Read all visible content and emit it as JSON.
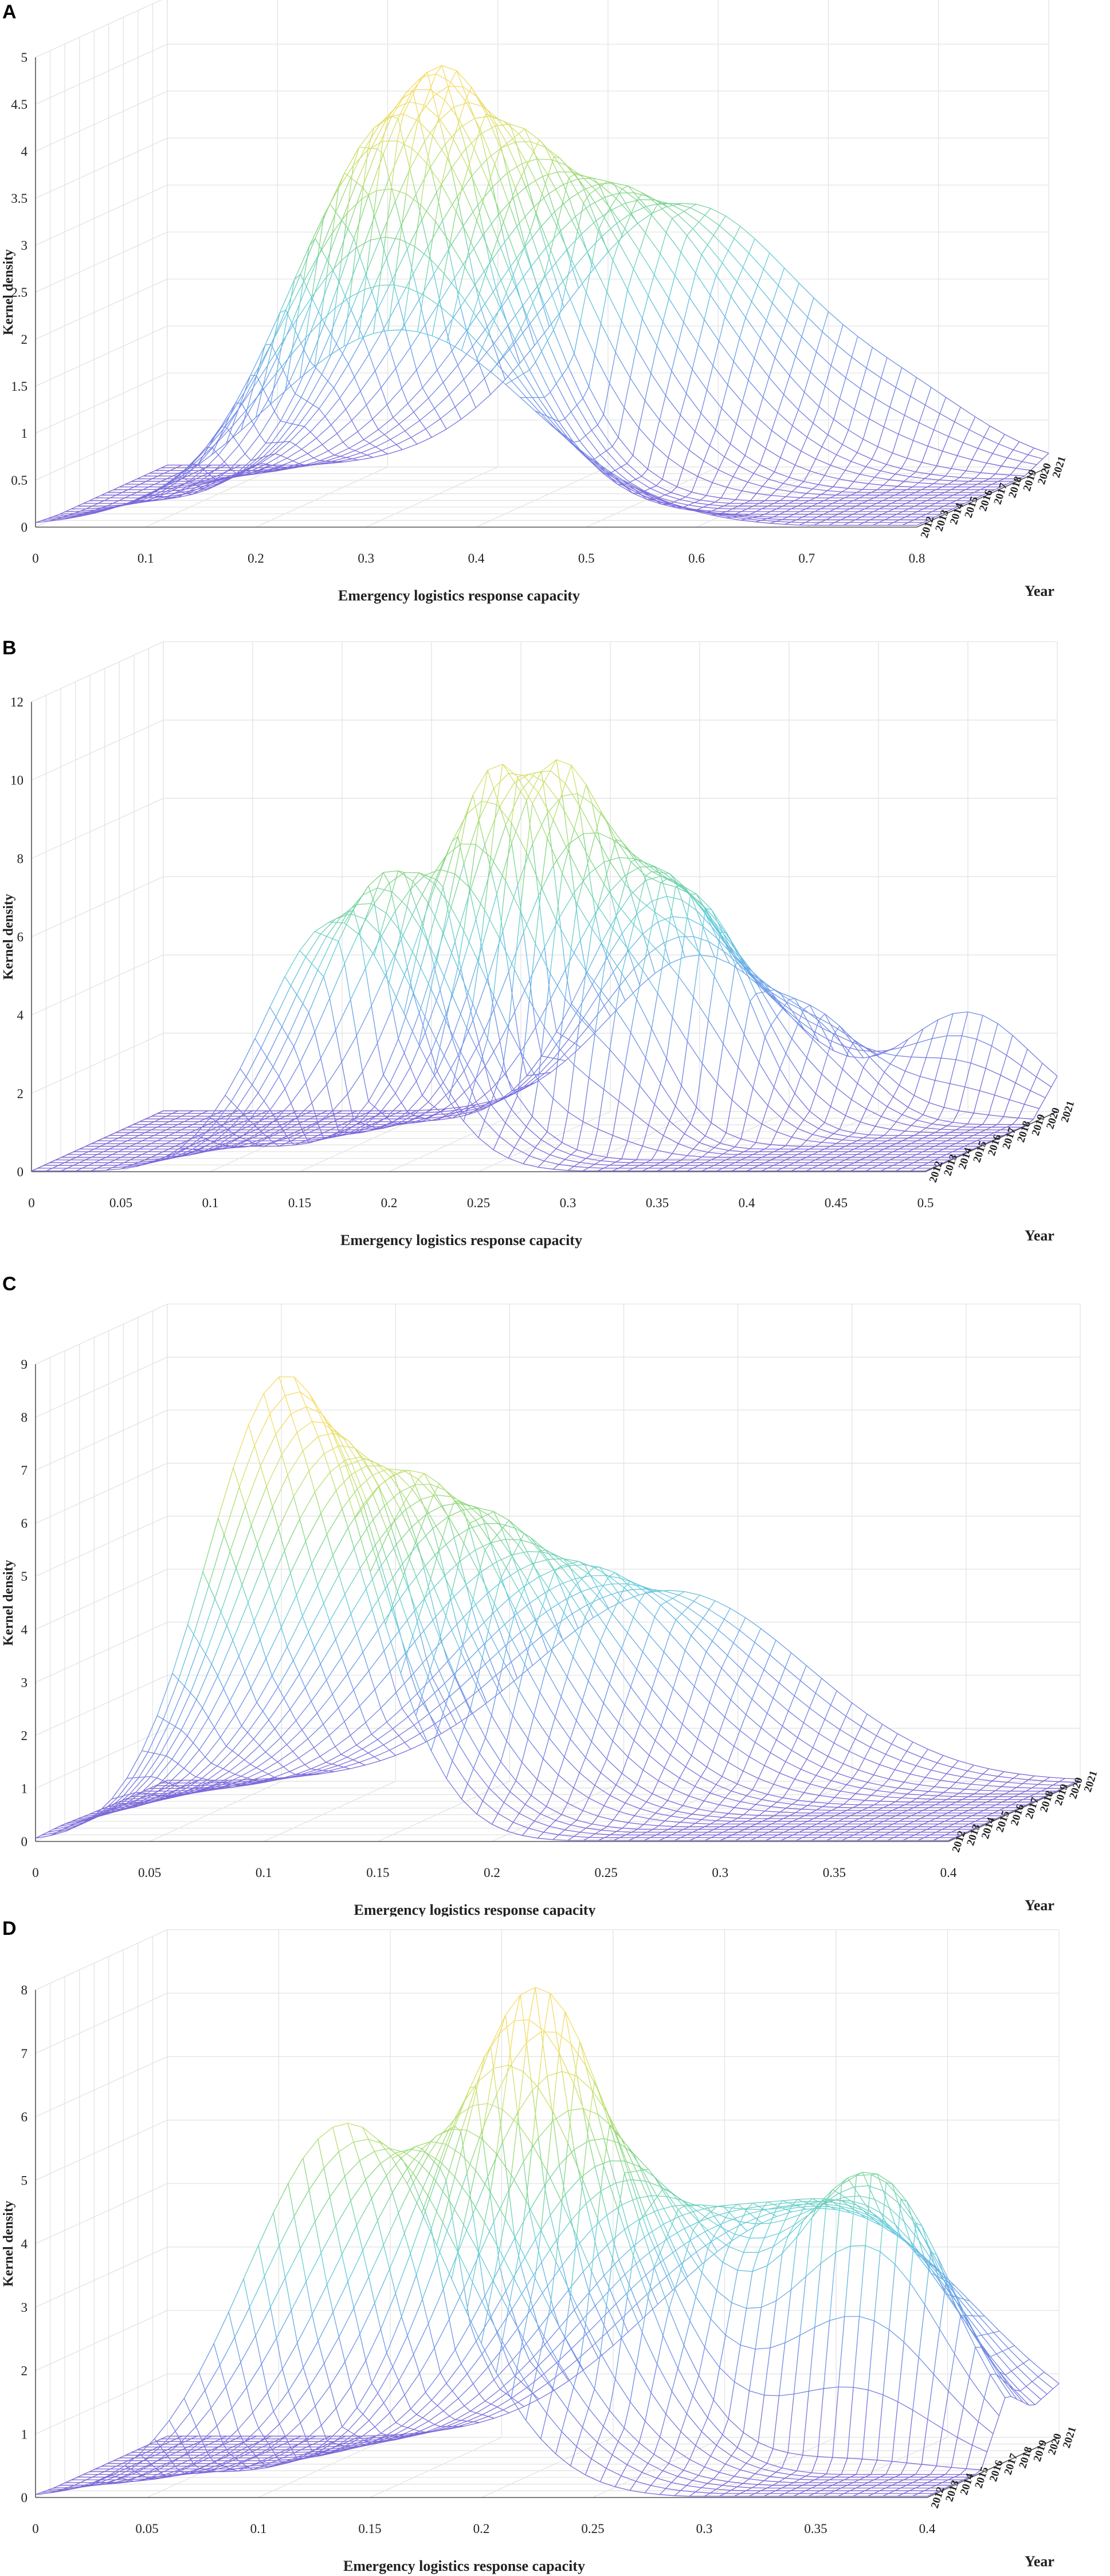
{
  "chart_data": [
    {
      "panel": "A",
      "type": "surface3d",
      "xlabel": "Emergency logistics response capacity",
      "ylabel": "Kernel density",
      "zlabel": "Year",
      "xticks": [
        "0",
        "0.1",
        "0.2",
        "0.3",
        "0.4",
        "0.5",
        "0.6",
        "0.7",
        "0.8"
      ],
      "yticks": [
        "0",
        "0.5",
        "1",
        "1.5",
        "2",
        "2.5",
        "3",
        "3.5",
        "4",
        "4.5",
        "5"
      ],
      "years": [
        "2012",
        "2013",
        "2014",
        "2015",
        "2016",
        "2017",
        "2018",
        "2019",
        "2020",
        "2021"
      ],
      "xlim": [
        0,
        0.8
      ],
      "ylim": [
        0,
        5
      ],
      "peaks": [
        {
          "year": "2012",
          "comps": [
            [
              0.33,
              0.12,
              2.1
            ]
          ]
        },
        {
          "year": "2014",
          "comps": [
            [
              0.3,
              0.09,
              4.2
            ]
          ]
        },
        {
          "year": "2016",
          "comps": [
            [
              0.32,
              0.08,
              4.7
            ]
          ]
        },
        {
          "year": "2018",
          "comps": [
            [
              0.36,
              0.1,
              3.9
            ]
          ]
        },
        {
          "year": "2020",
          "comps": [
            [
              0.42,
              0.11,
              3.2
            ]
          ]
        },
        {
          "year": "2021",
          "comps": [
            [
              0.47,
              0.11,
              2.8
            ],
            [
              0.68,
              0.07,
              0.5
            ]
          ]
        }
      ]
    },
    {
      "panel": "B",
      "type": "surface3d",
      "xlabel": "Emergency logistics response capacity",
      "ylabel": "Kernel density",
      "zlabel": "Year",
      "xticks": [
        "0",
        "0.05",
        "0.1",
        "0.15",
        "0.2",
        "0.25",
        "0.3",
        "0.35",
        "0.4",
        "0.45",
        "0.5"
      ],
      "yticks": [
        "0",
        "2",
        "4",
        "6",
        "8",
        "10",
        "12"
      ],
      "years": [
        "2012",
        "2013",
        "2014",
        "2015",
        "2016",
        "2017",
        "2018",
        "2019",
        "2020",
        "2021"
      ],
      "xlim": [
        0,
        0.5
      ],
      "ylim": [
        0,
        12
      ],
      "peaks": [
        {
          "year": "2012",
          "comps": [
            [
              0.17,
              0.04,
              6.4
            ]
          ]
        },
        {
          "year": "2014",
          "comps": [
            [
              0.19,
              0.04,
              7.6
            ]
          ]
        },
        {
          "year": "2016",
          "comps": [
            [
              0.23,
              0.035,
              9.8
            ],
            [
              0.3,
              0.025,
              3.0
            ]
          ]
        },
        {
          "year": "2018",
          "comps": [
            [
              0.25,
              0.035,
              9.5
            ],
            [
              0.33,
              0.03,
              5.5
            ]
          ]
        },
        {
          "year": "2020",
          "comps": [
            [
              0.29,
              0.04,
              6.5
            ],
            [
              0.38,
              0.03,
              2.5
            ]
          ]
        },
        {
          "year": "2021",
          "comps": [
            [
              0.3,
              0.05,
              4.0
            ],
            [
              0.45,
              0.035,
              2.5
            ]
          ]
        }
      ]
    },
    {
      "panel": "C",
      "type": "surface3d",
      "xlabel": "Emergency logistics response capacity",
      "ylabel": "Kernel density",
      "zlabel": "Year",
      "xticks": [
        "0",
        "0.05",
        "0.1",
        "0.15",
        "0.2",
        "0.25",
        "0.3",
        "0.35",
        "0.4"
      ],
      "yticks": [
        "0",
        "1",
        "2",
        "3",
        "4",
        "5",
        "6",
        "7",
        "8",
        "9"
      ],
      "years": [
        "2012",
        "2013",
        "2014",
        "2015",
        "2016",
        "2017",
        "2018",
        "2019",
        "2020",
        "2021"
      ],
      "xlim": [
        0,
        0.4
      ],
      "ylim": [
        0,
        9
      ],
      "peaks": [
        {
          "year": "2012",
          "comps": [
            [
              0.11,
              0.035,
              8.8
            ]
          ]
        },
        {
          "year": "2014",
          "comps": [
            [
              0.12,
              0.04,
              7.4
            ]
          ]
        },
        {
          "year": "2016",
          "comps": [
            [
              0.14,
              0.045,
              6.6
            ]
          ]
        },
        {
          "year": "2018",
          "comps": [
            [
              0.16,
              0.05,
              5.6
            ]
          ]
        },
        {
          "year": "2020",
          "comps": [
            [
              0.19,
              0.055,
              4.4
            ]
          ]
        },
        {
          "year": "2021",
          "comps": [
            [
              0.22,
              0.06,
              3.6
            ]
          ]
        }
      ]
    },
    {
      "panel": "D",
      "type": "surface3d",
      "xlabel": "Emergency logistics response capacity",
      "ylabel": "Kernel density",
      "zlabel": "Year",
      "xticks": [
        "0",
        "0.05",
        "0.1",
        "0.15",
        "0.2",
        "0.25",
        "0.3",
        "0.35",
        "0.4"
      ],
      "yticks": [
        "0",
        "1",
        "2",
        "3",
        "4",
        "5",
        "6",
        "7",
        "8"
      ],
      "years": [
        "2012",
        "2013",
        "2014",
        "2015",
        "2016",
        "2017",
        "2018",
        "2019",
        "2020",
        "2021"
      ],
      "xlim": [
        0,
        0.4
      ],
      "ylim": [
        0,
        8
      ],
      "peaks": [
        {
          "year": "2012",
          "comps": [
            [
              0.14,
              0.045,
              5.9
            ]
          ]
        },
        {
          "year": "2014",
          "comps": [
            [
              0.17,
              0.045,
              5.5
            ]
          ]
        },
        {
          "year": "2016",
          "comps": [
            [
              0.2,
              0.04,
              7.8
            ]
          ]
        },
        {
          "year": "2018",
          "comps": [
            [
              0.22,
              0.045,
              5.0
            ],
            [
              0.34,
              0.035,
              4.6
            ]
          ]
        },
        {
          "year": "2020",
          "comps": [
            [
              0.24,
              0.05,
              3.5
            ],
            [
              0.33,
              0.04,
              3.0
            ]
          ]
        },
        {
          "year": "2021",
          "comps": [
            [
              0.26,
              0.055,
              2.5
            ],
            [
              0.33,
              0.05,
              2.0
            ]
          ]
        }
      ]
    }
  ]
}
